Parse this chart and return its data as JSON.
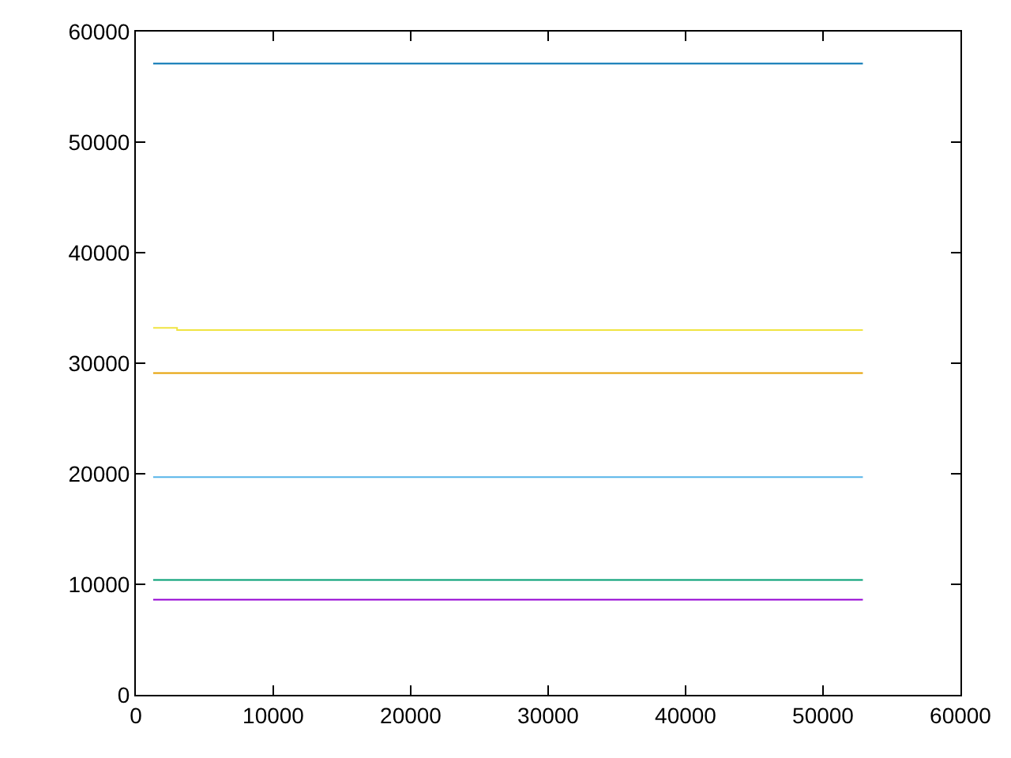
{
  "chart_data": {
    "type": "line",
    "xlim": [
      0,
      60000
    ],
    "xticks": [
      0,
      10000,
      20000,
      30000,
      40000,
      50000,
      60000
    ],
    "ylim": [
      0,
      60000
    ],
    "yticks": [
      0,
      10000,
      20000,
      30000,
      40000,
      50000,
      60000
    ],
    "marker": "none",
    "line_style": "solid",
    "series": [
      {
        "color": "#9400d3",
        "x": [
          1260,
          52900
        ],
        "values": [
          8600,
          8600
        ]
      },
      {
        "color": "#009e73",
        "x": [
          1260,
          52900
        ],
        "values": [
          10400,
          10400
        ]
      },
      {
        "color": "#56b4e9",
        "x": [
          1260,
          52900
        ],
        "values": [
          19700,
          19700
        ]
      },
      {
        "color": "#e69f00",
        "x": [
          1260,
          52900
        ],
        "values": [
          29100,
          29100
        ]
      },
      {
        "color": "#f0e442",
        "x": [
          1260,
          3000,
          3000,
          52900
        ],
        "values": [
          33200,
          33200,
          33000,
          33000
        ]
      },
      {
        "color": "#0072b2",
        "x": [
          1260,
          52900
        ],
        "values": [
          57100,
          57100
        ]
      }
    ]
  }
}
